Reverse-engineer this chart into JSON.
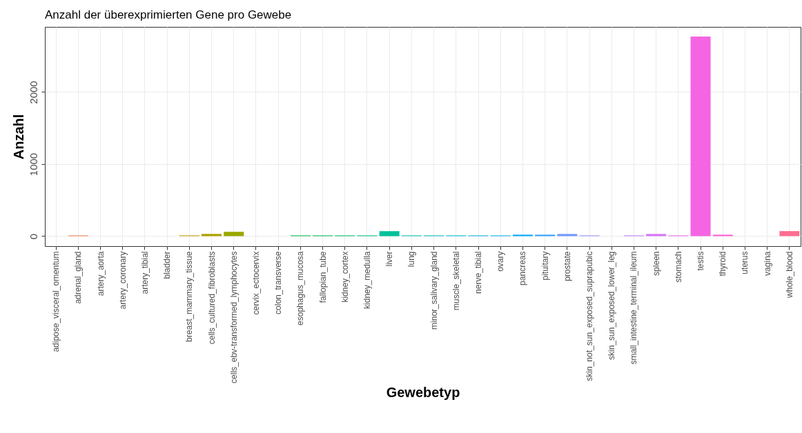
{
  "chart_data": {
    "type": "bar",
    "title": "Anzahl der überexprimierten Gene pro Gewebe",
    "xlabel": "Gewebetyp",
    "ylabel": "Anzahl",
    "categories": [
      "adipose_visceral_omentum",
      "adrenal_gland",
      "artery_aorta",
      "artery_coronary",
      "artery_tibial",
      "bladder",
      "breast_mammary_tissue",
      "cells_cultured_fibroblasts",
      "cells_ebv-transformed_lymphocytes",
      "cervix_ectocervix",
      "colon_transverse",
      "esophagus_mucosa",
      "fallopian_tube",
      "kidney_cortex",
      "kidney_medulla",
      "liver",
      "lung",
      "minor_salivary_gland",
      "muscle_skeletal",
      "nerve_tibial",
      "ovary",
      "pancreas",
      "pituitary",
      "prostate",
      "skin_not_sun_exposed_suprapubic",
      "skin_sun_exposed_lower_leg",
      "small_intestine_terminal_ileum",
      "spleen",
      "stomach",
      "testis",
      "thyroid",
      "uterus",
      "vagina",
      "whole_blood"
    ],
    "values": [
      null,
      10,
      null,
      null,
      null,
      null,
      10,
      30,
      60,
      null,
      null,
      10,
      10,
      10,
      10,
      70,
      10,
      10,
      10,
      10,
      10,
      20,
      20,
      30,
      10,
      null,
      10,
      30,
      10,
      2770,
      20,
      null,
      null,
      70
    ],
    "colors": [
      "#F8766D",
      "#F27D52",
      "#EA8331",
      "#DE8C00",
      "#D39200",
      "#C59900",
      "#C49A00",
      "#ADA200",
      "#99A800",
      "#7FAE00",
      "#5EB300",
      "#00BA42",
      "#00BC56",
      "#00BE6C",
      "#00C083",
      "#00C19A",
      "#00C0B0",
      "#00BDC2",
      "#00BAD4",
      "#00B7E4",
      "#00B2F3",
      "#00ABFD",
      "#35A2FF",
      "#7399FF",
      "#9590FF",
      "#AE87FF",
      "#C37EFF",
      "#D774F8",
      "#E86AEB",
      "#F564E3",
      "#FD61D3",
      "#FF61C3",
      "#FF66A8",
      "#FF6C91"
    ],
    "ylim": [
      -139,
      2904
    ],
    "yticks": [
      0,
      1000,
      2000
    ],
    "grid": true
  }
}
